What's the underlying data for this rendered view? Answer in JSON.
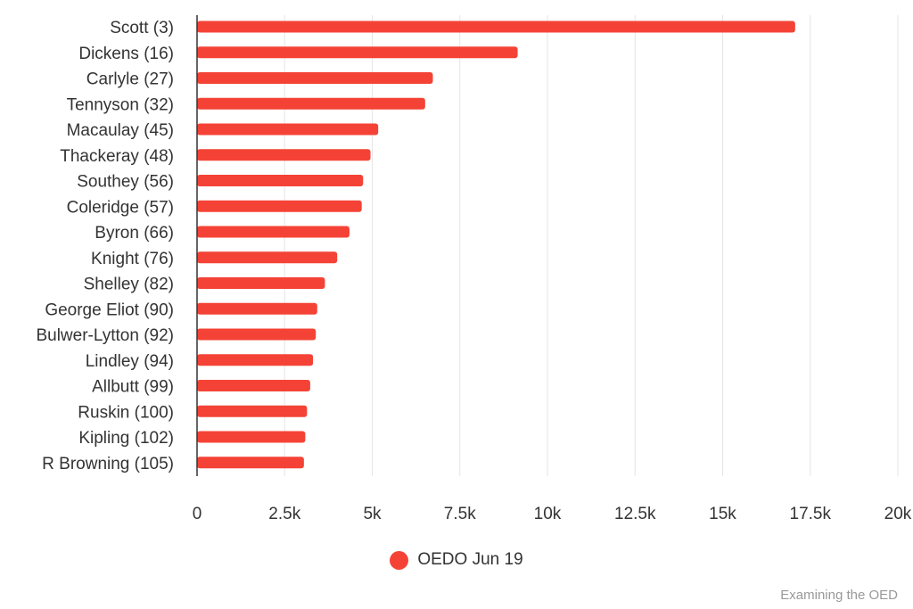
{
  "chart_data": {
    "type": "bar",
    "orientation": "horizontal",
    "title": "",
    "xlabel": "",
    "ylabel": "",
    "categories": [
      "Scott (3)",
      "Dickens (16)",
      "Carlyle (27)",
      "Tennyson (32)",
      "Macaulay (45)",
      "Thackeray (48)",
      "Southey (56)",
      "Coleridge (57)",
      "Byron (66)",
      "Knight (76)",
      "Shelley (82)",
      "George Eliot (90)",
      "Bulwer-Lytton (92)",
      "Lindley (94)",
      "Allbutt (99)",
      "Ruskin (100)",
      "Kipling (102)",
      "R Browning (105)"
    ],
    "series": [
      {
        "name": "OEDO Jun 19",
        "color": "#f44336",
        "values": [
          17070,
          9150,
          6730,
          6510,
          5170,
          4950,
          4740,
          4700,
          4350,
          4000,
          3650,
          3430,
          3390,
          3310,
          3230,
          3140,
          3090,
          3050
        ]
      }
    ],
    "xlim": [
      0,
      20000
    ],
    "xticks": [
      0,
      2500,
      5000,
      7500,
      10000,
      12500,
      15000,
      17500,
      20000
    ],
    "xtick_labels": [
      "0",
      "2.5k",
      "5k",
      "7.5k",
      "10k",
      "12.5k",
      "15k",
      "17.5k",
      "20k"
    ],
    "grid": true,
    "legend": {
      "position": "bottom-center",
      "entries": [
        "OEDO Jun 19"
      ]
    },
    "credit": "Examining the OED"
  },
  "colors": {
    "bar": "#f44336",
    "grid": "#e6e6e6",
    "axis": "#333333",
    "text": "#333333",
    "credit": "#999999"
  }
}
